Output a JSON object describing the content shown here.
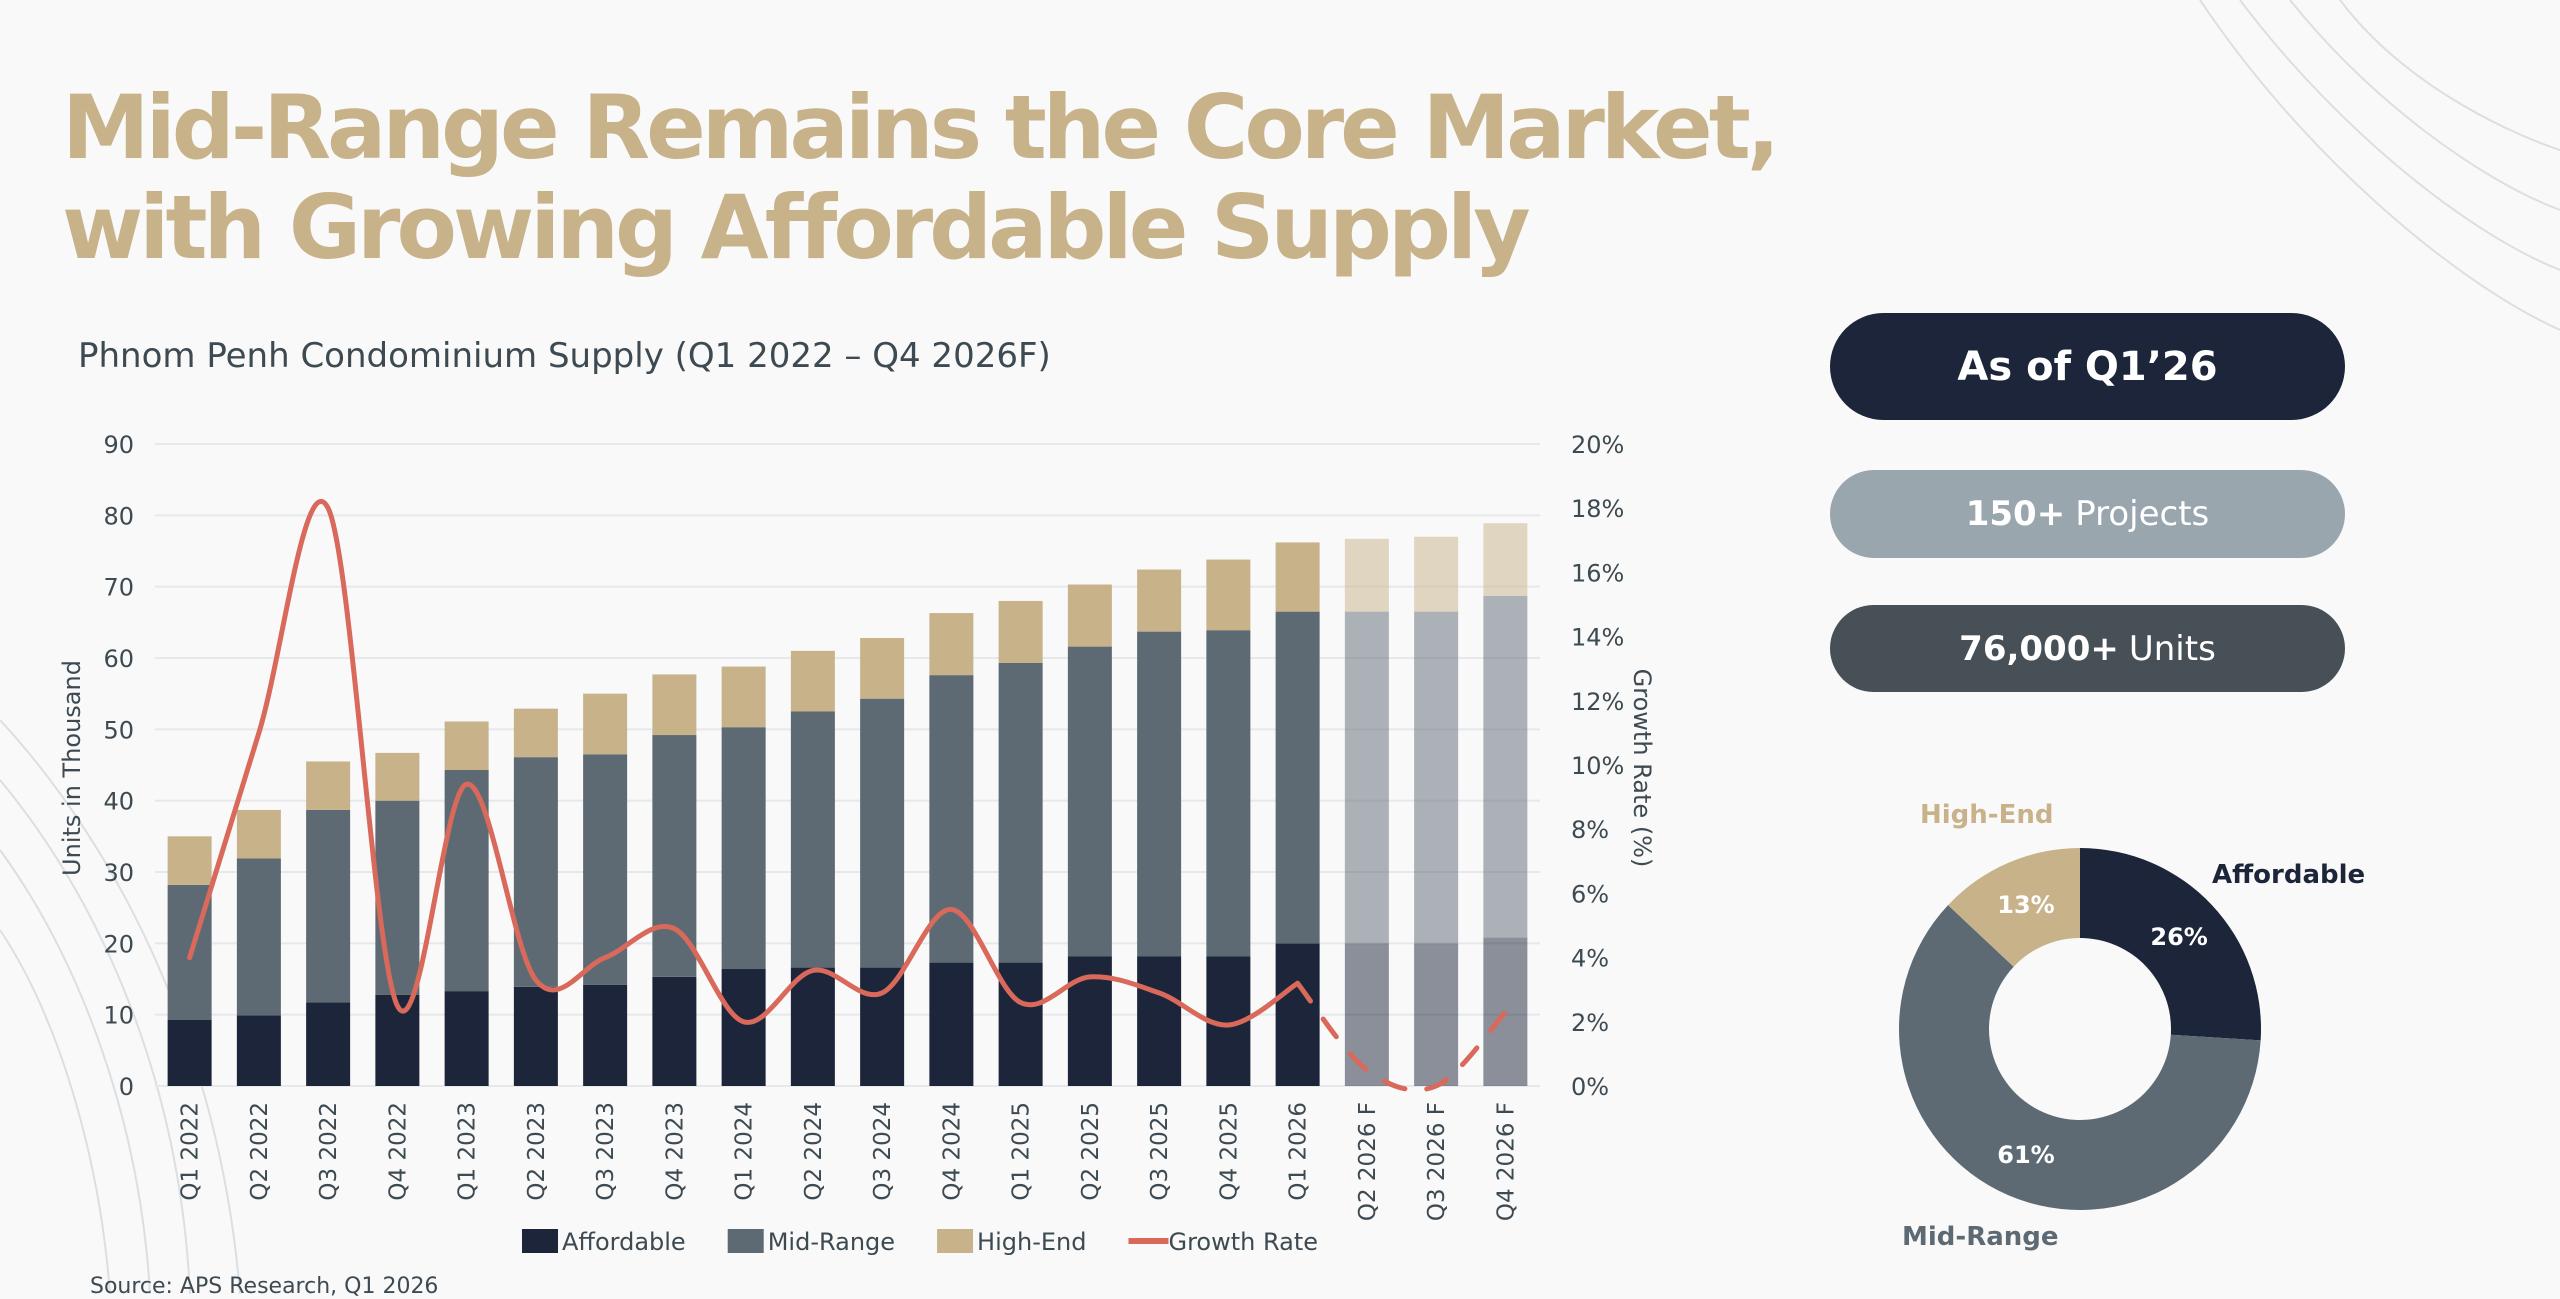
{
  "title_line1": "Mid-Range Remains the Core Market,",
  "title_line2": "with Growing Affordable Supply",
  "subtitle": "Phnom Penh Condominium Supply (Q1 2022 – Q4 2026F)",
  "source": "Source: APS Research, Q1 2026",
  "colors": {
    "affordable": "#1c2539",
    "mid_range": "#5d6a73",
    "high_end": "#c8b28a",
    "growth": "#d9695a",
    "title": "#c8b28a"
  },
  "chart_data": {
    "type": "bar",
    "stacked": true,
    "ylabel": "Units in Thousand",
    "y2label": "Growth Rate (%)",
    "ylim": [
      0,
      90
    ],
    "yticks": [
      0,
      10,
      20,
      30,
      40,
      50,
      60,
      70,
      80,
      90
    ],
    "y2lim": [
      0,
      20
    ],
    "y2ticks": [
      "0%",
      "2%",
      "4%",
      "6%",
      "8%",
      "10%",
      "12%",
      "14%",
      "16%",
      "18%",
      "20%"
    ],
    "grid": true,
    "legend_position": "bottom",
    "categories": [
      "Q1 2022",
      "Q2 2022",
      "Q3 2022",
      "Q4 2022",
      "Q1 2023",
      "Q2 2023",
      "Q3 2023",
      "Q4 2023",
      "Q1 2024",
      "Q2 2024",
      "Q3 2024",
      "Q4 2024",
      "Q1 2025",
      "Q2 2025",
      "Q3 2025",
      "Q4 2025",
      "Q1 2026",
      "Q2 2026 F",
      "Q3 2026 F",
      "Q4 2026 F"
    ],
    "forecast_from_index": 17,
    "series": [
      {
        "name": "Affordable",
        "type": "bar",
        "values": [
          9.3,
          9.9,
          11.7,
          12.8,
          13.3,
          13.9,
          14.2,
          15.3,
          16.4,
          16.6,
          16.6,
          17.3,
          17.3,
          18.2,
          18.2,
          18.2,
          20.0,
          20.0,
          20.0,
          20.8
        ]
      },
      {
        "name": "Mid-Range",
        "type": "bar",
        "values": [
          18.9,
          22.0,
          27.0,
          27.2,
          31.0,
          32.2,
          32.3,
          33.9,
          33.9,
          35.9,
          37.7,
          40.3,
          42.0,
          43.4,
          45.5,
          45.7,
          46.5,
          46.5,
          46.5,
          47.9
        ]
      },
      {
        "name": "High-End",
        "type": "bar",
        "values": [
          6.8,
          6.8,
          6.8,
          6.7,
          6.8,
          6.8,
          8.5,
          8.5,
          8.5,
          8.5,
          8.5,
          8.7,
          8.7,
          8.7,
          8.7,
          9.9,
          9.7,
          10.2,
          10.5,
          10.2
        ]
      },
      {
        "name": "Growth Rate",
        "type": "line",
        "axis": "right",
        "unit": "%",
        "values": [
          4.0,
          11.0,
          18.0,
          2.5,
          9.4,
          3.3,
          4.0,
          4.9,
          2.0,
          3.6,
          2.9,
          5.5,
          2.6,
          3.4,
          2.9,
          1.9,
          3.2,
          0.5,
          0.0,
          2.3
        ]
      }
    ]
  },
  "stats": {
    "as_of": "As of Q1’26",
    "projects_value": "150+",
    "projects_label": "Projects",
    "units_value": "76,000+",
    "units_label": "Units"
  },
  "donut": {
    "type": "pie",
    "slices": [
      {
        "name": "Affordable",
        "value": 26,
        "label": "26%"
      },
      {
        "name": "Mid-Range",
        "value": 61,
        "label": "61%"
      },
      {
        "name": "High-End",
        "value": 13,
        "label": "13%"
      }
    ]
  }
}
